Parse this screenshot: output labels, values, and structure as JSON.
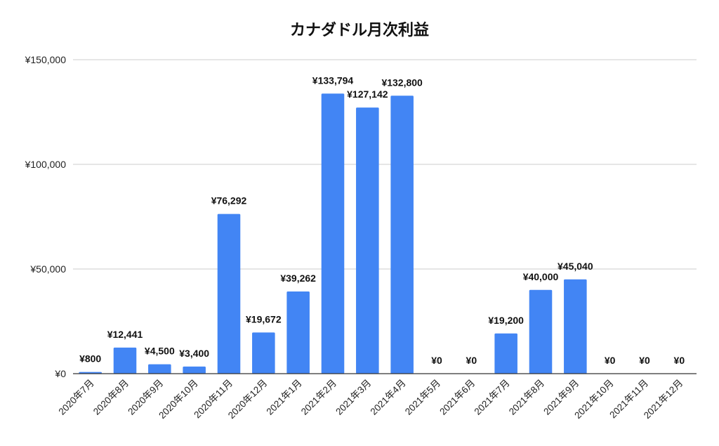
{
  "chart_data": {
    "type": "bar",
    "title": "カナダドル月次利益",
    "xlabel": "",
    "ylabel": "",
    "ylim": [
      0,
      150000
    ],
    "grid": true,
    "legend": "none",
    "bar_color": "#4285f4",
    "yticks": [
      0,
      50000,
      100000,
      150000
    ],
    "ytick_labels": [
      "¥0",
      "¥50,000",
      "¥100,000",
      "¥150,000"
    ],
    "categories": [
      "2020年7月",
      "2020年8月",
      "2020年9月",
      "2020年10月",
      "2020年11月",
      "2020年12月",
      "2021年1月",
      "2021年2月",
      "2021年3月",
      "2021年4月",
      "2021年5月",
      "2021年6月",
      "2021年7月",
      "2021年8月",
      "2021年9月",
      "2021年10月",
      "2021年11月",
      "2021年12月"
    ],
    "values": [
      800,
      12441,
      4500,
      3400,
      76292,
      19672,
      39262,
      133794,
      127142,
      132800,
      0,
      0,
      19200,
      40000,
      45040,
      0,
      0,
      0
    ],
    "data_labels": [
      "¥800",
      "¥12,441",
      "¥4,500",
      "¥3,400",
      "¥76,292",
      "¥19,672",
      "¥39,262",
      "¥133,794",
      "¥127,142",
      "¥132,800",
      "¥0",
      "¥0",
      "¥19,200",
      "¥40,000",
      "¥45,040",
      "¥0",
      "¥0",
      "¥0"
    ]
  }
}
